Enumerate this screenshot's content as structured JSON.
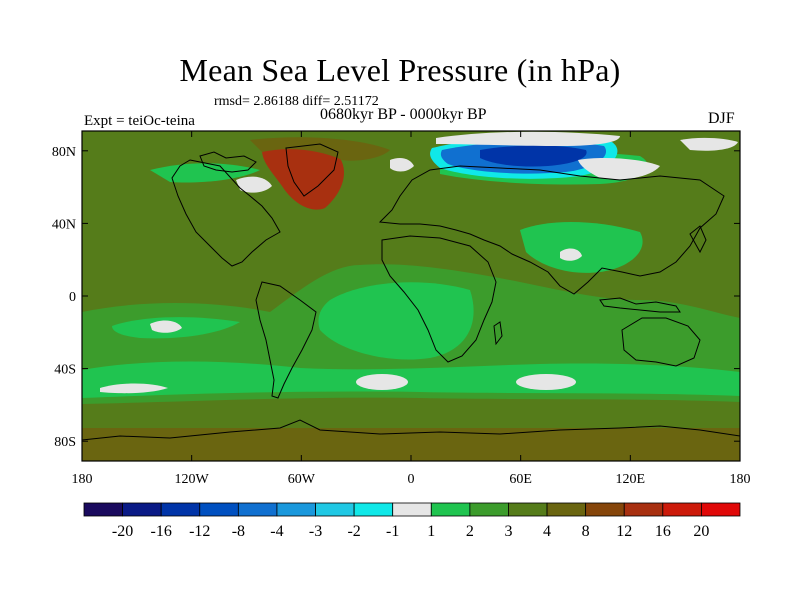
{
  "title": "Mean Sea Level Pressure (in hPa)",
  "stats": "rmsd= 2.86188 diff= 2.51172",
  "period": "0680kyr BP - 0000kyr BP",
  "expt": "Expt = teiOc-teina",
  "season": "DJF",
  "axes": {
    "x_ticks": [
      "180",
      "120W",
      "60W",
      "0",
      "60E",
      "120E",
      "180"
    ],
    "y_ticks": [
      "80N",
      "40N",
      "0",
      "40S",
      "80S"
    ]
  },
  "colorbar": {
    "labels": [
      "-20",
      "-16",
      "-12",
      "-8",
      "-4",
      "-3",
      "-2",
      "-1",
      "1",
      "2",
      "3",
      "4",
      "8",
      "12",
      "16",
      "20"
    ],
    "colors": [
      "#1a0a5e",
      "#0a1a86",
      "#0034a8",
      "#0050c0",
      "#1070d0",
      "#1a98dc",
      "#20c8e4",
      "#10e8e8",
      "#e6e6e6",
      "#20c450",
      "#3c9c2c",
      "#557c1a",
      "#6a6510",
      "#85450a",
      "#a83010",
      "#cc1a0a",
      "#e00808"
    ]
  },
  "map_colors": {
    "ocean_base": "#557c1a",
    "band_green": "#3c9c2c",
    "bright_green": "#20c450",
    "near_zero": "#e6e6e6",
    "blue_deep": "#0034a8",
    "blue_mid": "#1070d0",
    "blue_light": "#10e8e8",
    "brown": "#6a6510",
    "rust": "#a83010",
    "coastline": "#000000"
  }
}
